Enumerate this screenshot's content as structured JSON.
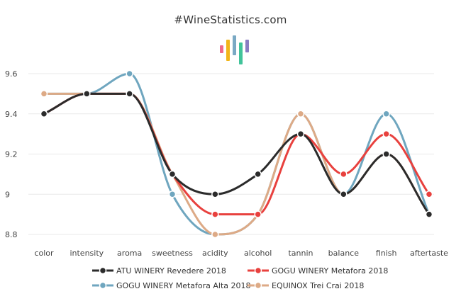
{
  "title": "#WineStatistics.com",
  "logo": {
    "bar_colors": [
      "#ef6a8a",
      "#f2b519",
      "#7aa9c4",
      "#41c39a",
      "#8a7cc2"
    ]
  },
  "chart_data": {
    "type": "line",
    "title": "#WineStatistics.com",
    "categories": [
      "color",
      "intensity",
      "aroma",
      "sweetness",
      "acidity",
      "alcohol",
      "tannin",
      "balance",
      "finish",
      "aftertaste"
    ],
    "ylim": [
      8.8,
      9.6
    ],
    "yticks": [
      8.8,
      9,
      9.2,
      9.4,
      9.6
    ],
    "ytick_labels": [
      "8.8",
      "9",
      "9.2",
      "9.4",
      "9.6"
    ],
    "grid": true,
    "legend_position": "bottom",
    "series": [
      {
        "name": "ATU WINERY Revedere 2018",
        "color": "#2b2b2b",
        "values": [
          9.4,
          9.5,
          9.5,
          9.1,
          9.0,
          9.1,
          9.3,
          9.0,
          9.2,
          8.9
        ]
      },
      {
        "name": "GOGU WINERY Metafora 2018",
        "color": "#e8413e",
        "values": [
          9.4,
          9.5,
          9.5,
          9.1,
          8.9,
          8.9,
          9.3,
          9.1,
          9.3,
          9.0
        ]
      },
      {
        "name": "GOGU WINERY Metafora Alta 2018",
        "color": "#6fa6bf",
        "values": [
          9.5,
          9.5,
          9.6,
          9.0,
          8.8,
          8.9,
          9.4,
          9.0,
          9.4,
          8.9
        ]
      },
      {
        "name": "EQUINOX Trei Crai 2018",
        "color": "#ddaa86",
        "values": [
          9.5,
          9.5,
          9.5,
          9.1,
          8.8,
          8.9,
          9.4,
          9.0,
          9.2,
          8.9
        ]
      }
    ]
  }
}
